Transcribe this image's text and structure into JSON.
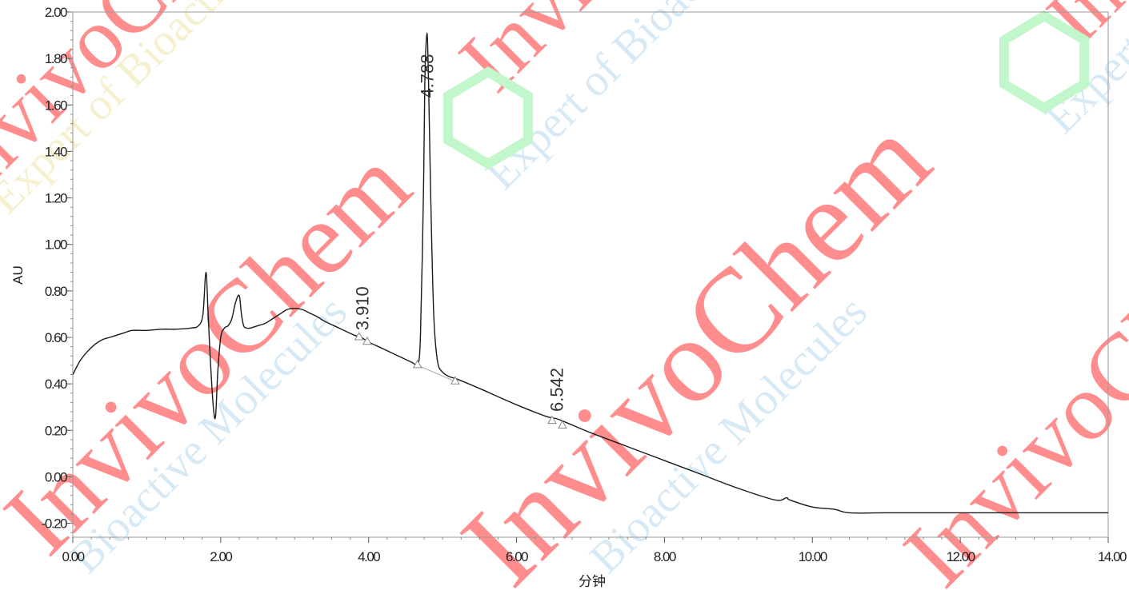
{
  "chart_data": {
    "type": "line",
    "title": "",
    "xlabel": "分钟",
    "ylabel": "AU",
    "xlim": [
      0,
      14
    ],
    "ylim": [
      -0.26,
      2.0
    ],
    "x_ticks": [
      0,
      2,
      4,
      6,
      8,
      10,
      12,
      14
    ],
    "x_tick_labels": [
      "0.00",
      "2.00",
      "4.00",
      "6.00",
      "8.00",
      "10.00",
      "12.00",
      "14.00"
    ],
    "y_ticks": [
      -0.2,
      0,
      0.2,
      0.4,
      0.6,
      0.8,
      1.0,
      1.2,
      1.4,
      1.6,
      1.8,
      2.0
    ],
    "y_tick_labels": [
      "-0.20",
      "0.00",
      "0.20",
      "0.40",
      "0.60",
      "0.80",
      "1.00",
      "1.20",
      "1.40",
      "1.60",
      "1.80",
      "2.00"
    ],
    "grid": false,
    "legend": "none",
    "series": [
      {
        "x": [
          0.0,
          0.1,
          0.2,
          0.3,
          0.4,
          0.5,
          0.6,
          0.7,
          0.8,
          1.0,
          1.2,
          1.4,
          1.6,
          1.7,
          1.76,
          1.8,
          1.83,
          1.86,
          1.9,
          1.93,
          1.96,
          2.0,
          2.05,
          2.1,
          2.15,
          2.2,
          2.25,
          2.28,
          2.31,
          2.35,
          2.4,
          2.5,
          2.6,
          2.7,
          2.8,
          2.9,
          3.0,
          3.1,
          3.2,
          3.3,
          3.4,
          3.6,
          3.8,
          3.9,
          4.0,
          4.2,
          4.4,
          4.6,
          4.66,
          4.7,
          4.74,
          4.76,
          4.788,
          4.81,
          4.84,
          4.88,
          4.93,
          5.0,
          5.1,
          5.2,
          5.5,
          6.0,
          6.4,
          6.542,
          6.7,
          7.0,
          7.5,
          8.0,
          8.5,
          9.0,
          9.5,
          9.65,
          9.7,
          10.0,
          10.3,
          10.5,
          11.0,
          12.0,
          13.0,
          14.0
        ],
        "y": [
          0.44,
          0.5,
          0.54,
          0.57,
          0.59,
          0.6,
          0.61,
          0.62,
          0.63,
          0.63,
          0.635,
          0.635,
          0.64,
          0.65,
          0.7,
          0.88,
          0.7,
          0.5,
          0.3,
          0.26,
          0.45,
          0.6,
          0.64,
          0.65,
          0.68,
          0.75,
          0.78,
          0.7,
          0.65,
          0.64,
          0.64,
          0.65,
          0.66,
          0.68,
          0.7,
          0.72,
          0.725,
          0.72,
          0.705,
          0.69,
          0.67,
          0.64,
          0.61,
          0.6,
          0.58,
          0.55,
          0.52,
          0.49,
          0.48,
          0.6,
          1.2,
          1.7,
          1.91,
          1.7,
          1.2,
          0.7,
          0.5,
          0.45,
          0.43,
          0.42,
          0.38,
          0.31,
          0.26,
          0.25,
          0.23,
          0.19,
          0.13,
          0.07,
          0.01,
          -0.05,
          -0.1,
          -0.09,
          -0.1,
          -0.13,
          -0.14,
          -0.155,
          -0.155,
          -0.155,
          -0.155,
          -0.155
        ]
      }
    ],
    "baselines": [
      {
        "x": [
          4.66,
          5.17
        ],
        "y": [
          0.48,
          0.41
        ]
      }
    ],
    "peak_markers": [
      {
        "x": 3.87,
        "y": 0.6
      },
      {
        "x": 3.98,
        "y": 0.58
      },
      {
        "x": 4.66,
        "y": 0.48
      },
      {
        "x": 5.17,
        "y": 0.41
      },
      {
        "x": 6.48,
        "y": 0.24
      },
      {
        "x": 6.62,
        "y": 0.22
      }
    ],
    "peak_labels": [
      {
        "text": "3.910",
        "x": 3.91,
        "y": 0.63
      },
      {
        "text": "4.788",
        "x": 4.788,
        "y": 1.63
      },
      {
        "text": "6.542",
        "x": 6.542,
        "y": 0.28
      }
    ]
  },
  "watermark": {
    "brand_color": "#ff3030",
    "tagline_color": "#b8d8ee",
    "tagline2_color": "#f0e4a8",
    "logo_color": "#90eea0"
  }
}
